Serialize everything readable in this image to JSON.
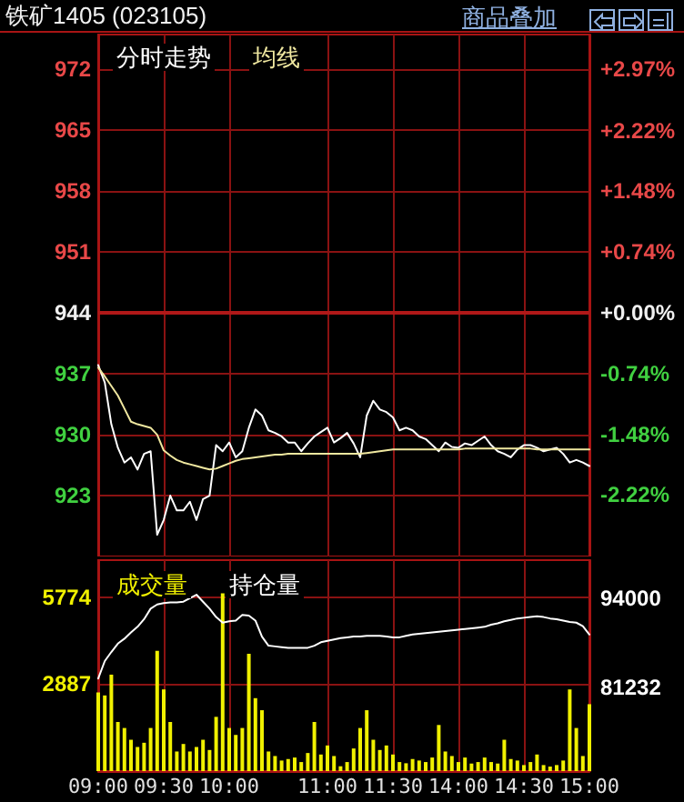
{
  "chart_data": [
    {
      "type": "line",
      "title": "铁矿1405 (023105)",
      "annotations": [
        "商品叠加"
      ],
      "legend": "top left",
      "grid": true,
      "tick_labels": "y",
      "categories": [
        null,
        null,
        null,
        null,
        null,
        null,
        null,
        null,
        null,
        null,
        null,
        null,
        null,
        null,
        null,
        null,
        null,
        null,
        null,
        null,
        null,
        null,
        null,
        null,
        null,
        null,
        null,
        null,
        null,
        null,
        null,
        null,
        null,
        null,
        null,
        null,
        null,
        null,
        null,
        null,
        null,
        null,
        null,
        null,
        null,
        null,
        null,
        null,
        null,
        null,
        null,
        null,
        null,
        null,
        null,
        null,
        null,
        null,
        null,
        null,
        null,
        null,
        null,
        null,
        null,
        null,
        null,
        null,
        null,
        null,
        null,
        null,
        null,
        null,
        null,
        null
      ],
      "ylim": [
        916,
        976
      ],
      "yticks": [
        923,
        930,
        937,
        944,
        951,
        958,
        965,
        972
      ],
      "y2lim": [
        -2.97,
        3.39
      ],
      "y2ticks": [
        {
          "value": -2.22,
          "label": "-2.22%"
        },
        {
          "value": -1.48,
          "label": "-1.48%"
        },
        {
          "value": -0.74,
          "label": "-0.74%"
        },
        {
          "value": 0,
          "label": "+0.00%"
        },
        {
          "value": 0.74,
          "label": "+0.74%"
        },
        {
          "value": 1.48,
          "label": "+1.48%"
        },
        {
          "value": 2.22,
          "label": "+2.22%"
        },
        {
          "value": 2.97,
          "label": "+2.97%"
        }
      ],
      "ref_lines": [
        {
          "axis": "y",
          "value": 944,
          "color": "#b01818"
        }
      ],
      "series": [
        {
          "name": "分时走势",
          "color": "#ffffff",
          "values": [
            938,
            936,
            931.2,
            928.5,
            926.8,
            927.4,
            926,
            927.8,
            928.1,
            918.5,
            920.2,
            923,
            921.3,
            921.3,
            922.3,
            920.2,
            922.6,
            923,
            928.8,
            928.1,
            929.1,
            927.4,
            928.1,
            930.8,
            932.9,
            932.2,
            930.5,
            930.2,
            929.8,
            929.1,
            929.1,
            928.1,
            929,
            929.8,
            930.3,
            930.8,
            929.1,
            929.6,
            930.2,
            929,
            927.4,
            932.2,
            933.9,
            932.9,
            932.6,
            932,
            930.5,
            930.8,
            930.5,
            929.8,
            929.5,
            928.8,
            928.1,
            929.1,
            928.6,
            928.5,
            929,
            928.8,
            929.3,
            929.8,
            928.8,
            928.1,
            927.8,
            927.4,
            928.3,
            928.8,
            928.8,
            928.5,
            928.1,
            928.3,
            928.5,
            927.8,
            926.8,
            927.1,
            926.8,
            926.4
          ]
        },
        {
          "name": "均线",
          "color": "#f0e8a0",
          "values": [
            937.7,
            936.7,
            935.6,
            934.5,
            933,
            931.5,
            931.2,
            931,
            930.8,
            930,
            928.2,
            927.6,
            927.1,
            926.8,
            926.6,
            926.4,
            926.2,
            926,
            926.1,
            926.4,
            926.7,
            927,
            927.2,
            927.3,
            927.4,
            927.5,
            927.6,
            927.7,
            927.7,
            927.8,
            927.8,
            927.8,
            927.8,
            927.8,
            927.8,
            927.8,
            927.8,
            927.8,
            927.8,
            927.8,
            927.8,
            927.9,
            928,
            928.1,
            928.2,
            928.3,
            928.3,
            928.3,
            928.3,
            928.3,
            928.3,
            928.3,
            928.3,
            928.3,
            928.3,
            928.3,
            928.4,
            928.4,
            928.4,
            928.4,
            928.4,
            928.4,
            928.4,
            928.4,
            928.4,
            928.4,
            928.4,
            928.3,
            928.3,
            928.3,
            928.3,
            928.3,
            928.3,
            928.3,
            928.3,
            928.3
          ]
        }
      ]
    },
    {
      "type": "bar",
      "legend": "top left",
      "grid": true,
      "categories": [
        "09:00",
        null,
        null,
        null,
        null,
        null,
        null,
        null,
        null,
        null,
        "09:30",
        null,
        null,
        null,
        null,
        null,
        null,
        null,
        null,
        null,
        "10:00",
        null,
        null,
        null,
        null,
        null,
        null,
        null,
        null,
        null,
        null,
        null,
        null,
        null,
        null,
        "11:00",
        null,
        null,
        null,
        null,
        null,
        null,
        null,
        null,
        null,
        "11:30",
        null,
        null,
        null,
        null,
        null,
        null,
        null,
        null,
        null,
        "14:00",
        null,
        null,
        null,
        null,
        null,
        null,
        null,
        null,
        null,
        "14:30",
        null,
        null,
        null,
        null,
        null,
        null,
        null,
        null,
        null,
        "15:00"
      ],
      "ylim": [
        0,
        7000
      ],
      "yticks": [
        2887,
        5774
      ],
      "y2lim": [
        69250,
        99450
      ],
      "y2ticks": [
        81232,
        94000
      ],
      "series": [
        {
          "name": "成交量",
          "color": "#f0f000",
          "values": [
            2610,
            2510,
            3200,
            1630,
            1430,
            1040,
            800,
            940,
            1430,
            3990,
            2710,
            1630,
            650,
            900,
            650,
            800,
            1040,
            700,
            1800,
            5900,
            1430,
            1200,
            1430,
            3890,
            2420,
            2020,
            650,
            500,
            350,
            400,
            450,
            300,
            600,
            1630,
            550,
            850,
            500,
            160,
            300,
            750,
            1430,
            2020,
            1040,
            700,
            850,
            550,
            300,
            260,
            400,
            350,
            300,
            450,
            1530,
            650,
            500,
            300,
            450,
            250,
            300,
            450,
            300,
            250,
            1040,
            400,
            350,
            200,
            300,
            550,
            200,
            150,
            200,
            350,
            2710,
            1430,
            500,
            2220
          ]
        },
        {
          "name": "持仓量",
          "type": "line",
          "axis": "y2",
          "color": "#ffffff",
          "values": [
            82500,
            85000,
            86300,
            87500,
            88200,
            89100,
            89900,
            91000,
            92500,
            93100,
            93300,
            93400,
            93400,
            93500,
            94000,
            94500,
            93500,
            92500,
            91300,
            90500,
            90700,
            90800,
            91600,
            91500,
            90800,
            88500,
            87200,
            87100,
            87000,
            86900,
            86900,
            86900,
            86900,
            87200,
            87700,
            87900,
            88100,
            88300,
            88400,
            88500,
            88500,
            88600,
            88600,
            88600,
            88500,
            88400,
            88400,
            88600,
            88800,
            88900,
            89000,
            89100,
            89200,
            89300,
            89400,
            89500,
            89600,
            89700,
            89800,
            89900,
            90200,
            90400,
            90700,
            90900,
            91100,
            91200,
            91300,
            91400,
            91300,
            91100,
            91000,
            90800,
            90600,
            90500,
            90000,
            88800
          ]
        }
      ]
    }
  ]
}
